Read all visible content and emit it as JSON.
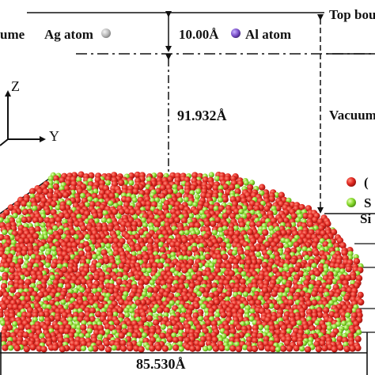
{
  "labels": {
    "top_boundary": "Top bou",
    "volume_left": "ume",
    "ag_atom": "Ag atom",
    "al_atom": "Al atom",
    "gap_distance": "10.00Å",
    "vacuum_height": "91.932Å",
    "vacuum": "Vacuum",
    "axis_z": "Z",
    "axis_y": "Y",
    "legend_o_partial": "(",
    "legend_si_partial": "S",
    "si_partial": "Si",
    "width": "85.530Å"
  },
  "legend": {
    "ag_color": "#b9b9b9",
    "al_color": "#7a4fc9",
    "o_color": "#d9231e",
    "si_color": "#7fd62a"
  },
  "colors": {
    "oxygen": "#e0261f",
    "silicon": "#86d92b",
    "line": "#111111"
  }
}
